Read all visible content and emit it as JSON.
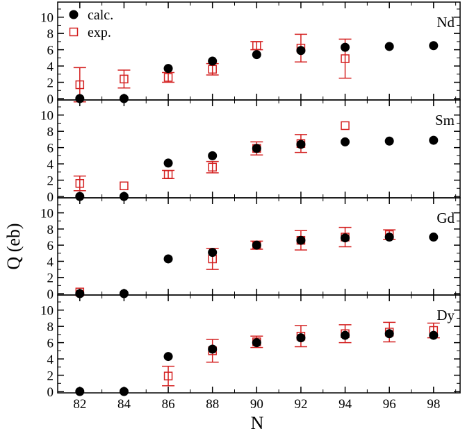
{
  "chart_data": {
    "type": "scatter",
    "xlabel": "N",
    "ylabel": "Q (eb)",
    "xlim": [
      81,
      99.2
    ],
    "ylim": [
      0,
      11
    ],
    "x_ticks": [
      "82",
      "84",
      "86",
      "88",
      "90",
      "92",
      "94",
      "96",
      "98"
    ],
    "y_ticks": [
      "0",
      "2",
      "4",
      "6",
      "8",
      "10"
    ],
    "legend": {
      "position": "top-left",
      "entries": [
        {
          "label": "calc.",
          "marker": "filled-circle",
          "color": "#000000"
        },
        {
          "label": "exp.",
          "marker": "open-square",
          "color": "#d42020"
        }
      ]
    },
    "colors": {
      "calc": "#000000",
      "exp": "#d42020",
      "axis": "#000000"
    },
    "panels": [
      {
        "title": "Nd",
        "calc": [
          {
            "x": 82,
            "y": 0.0
          },
          {
            "x": 84,
            "y": 0.0
          },
          {
            "x": 86,
            "y": 3.7
          },
          {
            "x": 88,
            "y": 4.6
          },
          {
            "x": 90,
            "y": 5.4
          },
          {
            "x": 92,
            "y": 5.9
          },
          {
            "x": 94,
            "y": 6.3
          },
          {
            "x": 96,
            "y": 6.4
          },
          {
            "x": 98,
            "y": 6.5
          }
        ],
        "exp": [
          {
            "x": 82,
            "y": 1.7,
            "err": 2.1
          },
          {
            "x": 84,
            "y": 2.4,
            "err": 1.1
          },
          {
            "x": 86,
            "y": 2.6,
            "err": 0.6
          },
          {
            "x": 88,
            "y": 3.6,
            "err": 0.7
          },
          {
            "x": 90,
            "y": 6.5,
            "err": 0.5
          },
          {
            "x": 92,
            "y": 6.2,
            "err": 1.7
          },
          {
            "x": 94,
            "y": 4.9,
            "err": 2.4
          }
        ]
      },
      {
        "title": "Sm",
        "calc": [
          {
            "x": 82,
            "y": 0.0
          },
          {
            "x": 84,
            "y": 0.0
          },
          {
            "x": 86,
            "y": 4.1
          },
          {
            "x": 88,
            "y": 5.0
          },
          {
            "x": 90,
            "y": 5.9
          },
          {
            "x": 92,
            "y": 6.4
          },
          {
            "x": 94,
            "y": 6.7
          },
          {
            "x": 96,
            "y": 6.8
          },
          {
            "x": 98,
            "y": 6.9
          }
        ],
        "exp": [
          {
            "x": 82,
            "y": 1.6,
            "err": 0.9
          },
          {
            "x": 84,
            "y": 1.3,
            "err": 0.0
          },
          {
            "x": 86,
            "y": 2.7,
            "err": 0.5
          },
          {
            "x": 88,
            "y": 3.6,
            "err": 0.7
          },
          {
            "x": 90,
            "y": 5.9,
            "err": 0.8
          },
          {
            "x": 92,
            "y": 6.5,
            "err": 1.1
          },
          {
            "x": 94,
            "y": 8.7,
            "err": 0.0
          }
        ]
      },
      {
        "title": "Gd",
        "calc": [
          {
            "x": 82,
            "y": 0.0
          },
          {
            "x": 84,
            "y": 0.0
          },
          {
            "x": 86,
            "y": 4.3
          },
          {
            "x": 88,
            "y": 5.1
          },
          {
            "x": 90,
            "y": 6.0
          },
          {
            "x": 92,
            "y": 6.6
          },
          {
            "x": 94,
            "y": 6.9
          },
          {
            "x": 96,
            "y": 7.0
          },
          {
            "x": 98,
            "y": 7.0
          }
        ],
        "exp": [
          {
            "x": 82,
            "y": 0.2,
            "err": 0.0
          },
          {
            "x": 88,
            "y": 4.3,
            "err": 1.3
          },
          {
            "x": 90,
            "y": 6.0,
            "err": 0.5
          },
          {
            "x": 92,
            "y": 6.6,
            "err": 1.2
          },
          {
            "x": 94,
            "y": 7.0,
            "err": 1.2
          },
          {
            "x": 96,
            "y": 7.3,
            "err": 0.6
          }
        ]
      },
      {
        "title": "Dy",
        "calc": [
          {
            "x": 82,
            "y": 0.0
          },
          {
            "x": 84,
            "y": 0.0
          },
          {
            "x": 86,
            "y": 4.3
          },
          {
            "x": 88,
            "y": 5.2
          },
          {
            "x": 90,
            "y": 6.0
          },
          {
            "x": 92,
            "y": 6.6
          },
          {
            "x": 94,
            "y": 6.9
          },
          {
            "x": 96,
            "y": 7.1
          },
          {
            "x": 98,
            "y": 6.9
          }
        ],
        "exp": [
          {
            "x": 86,
            "y": 1.9,
            "err": 1.2
          },
          {
            "x": 88,
            "y": 5.0,
            "err": 1.4
          },
          {
            "x": 90,
            "y": 6.1,
            "err": 0.7
          },
          {
            "x": 92,
            "y": 6.8,
            "err": 1.3
          },
          {
            "x": 94,
            "y": 7.1,
            "err": 1.1
          },
          {
            "x": 96,
            "y": 7.3,
            "err": 1.2
          },
          {
            "x": 98,
            "y": 7.5,
            "err": 0.9
          }
        ]
      }
    ]
  }
}
